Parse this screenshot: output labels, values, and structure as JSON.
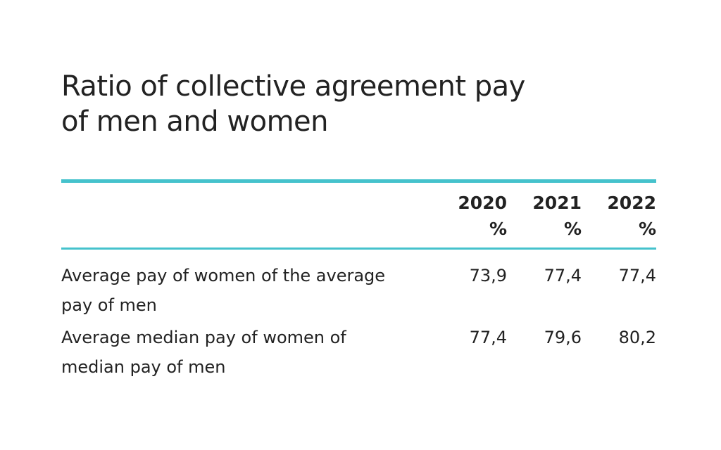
{
  "title": {
    "line1": "Ratio of collective agreement pay",
    "line2": "of men and women"
  },
  "colors": {
    "accent": "#45c2cc",
    "text": "#222222",
    "background": "#ffffff"
  },
  "table": {
    "columns": [
      {
        "year": "2020",
        "unit": "%"
      },
      {
        "year": "2021",
        "unit": "%"
      },
      {
        "year": "2022",
        "unit": "%"
      }
    ],
    "rows": [
      {
        "label_line1": "Average pay of women of the average",
        "label_line2": "pay of men",
        "values": [
          "73,9",
          "77,4",
          "77,4"
        ]
      },
      {
        "label_line1": "Average median pay of women of",
        "label_line2": "median pay of men",
        "values": [
          "77,4",
          "79,6",
          "80,2"
        ]
      }
    ]
  }
}
